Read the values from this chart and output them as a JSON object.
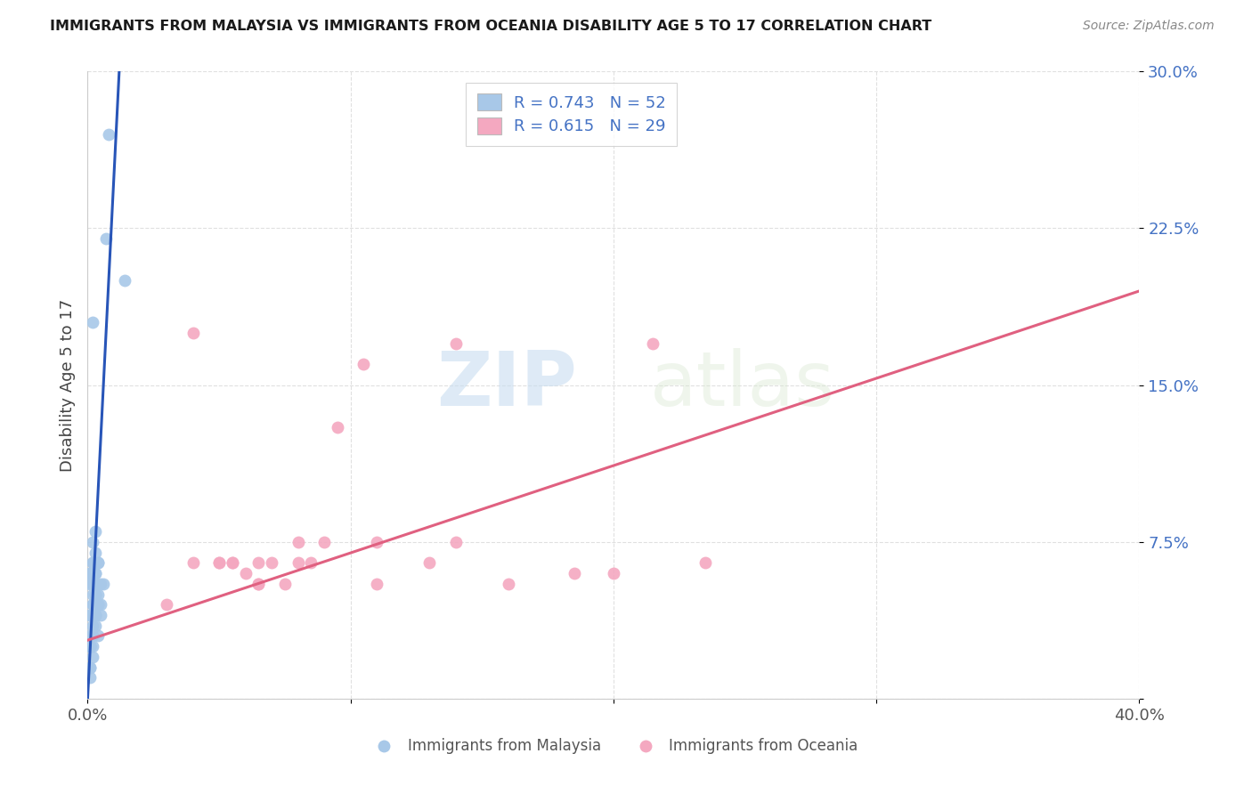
{
  "title": "IMMIGRANTS FROM MALAYSIA VS IMMIGRANTS FROM OCEANIA DISABILITY AGE 5 TO 17 CORRELATION CHART",
  "source": "Source: ZipAtlas.com",
  "ylabel": "Disability Age 5 to 17",
  "ytick_vals": [
    0.0,
    0.075,
    0.15,
    0.225,
    0.3
  ],
  "ytick_labels": [
    "",
    "7.5%",
    "15.0%",
    "22.5%",
    "30.0%"
  ],
  "xtick_vals": [
    0.0,
    0.1,
    0.2,
    0.3,
    0.4
  ],
  "xtick_labels": [
    "0.0%",
    "",
    "",
    "",
    "40.0%"
  ],
  "xlim": [
    0.0,
    0.4
  ],
  "ylim": [
    0.0,
    0.3
  ],
  "malaysia_r": 0.743,
  "malaysia_n": 52,
  "oceania_r": 0.615,
  "oceania_n": 29,
  "malaysia_color": "#a8c8e8",
  "oceania_color": "#f4a8c0",
  "malaysia_line_color": "#2855b8",
  "oceania_line_color": "#e06080",
  "malaysia_scatter_x": [
    0.005,
    0.003,
    0.002,
    0.001,
    0.008,
    0.004,
    0.006,
    0.003,
    0.005,
    0.002,
    0.001,
    0.001,
    0.004,
    0.003,
    0.007,
    0.002,
    0.002,
    0.003,
    0.001,
    0.002,
    0.003,
    0.004,
    0.001,
    0.005,
    0.003,
    0.002,
    0.001,
    0.004,
    0.002,
    0.003,
    0.002,
    0.001,
    0.001,
    0.002,
    0.001,
    0.003,
    0.004,
    0.001,
    0.002,
    0.002,
    0.004,
    0.003,
    0.003,
    0.002,
    0.001,
    0.003,
    0.014,
    0.002,
    0.001,
    0.001,
    0.003,
    0.002
  ],
  "malaysia_scatter_y": [
    0.055,
    0.04,
    0.045,
    0.03,
    0.27,
    0.065,
    0.055,
    0.04,
    0.045,
    0.065,
    0.06,
    0.055,
    0.065,
    0.07,
    0.22,
    0.075,
    0.065,
    0.06,
    0.04,
    0.055,
    0.05,
    0.045,
    0.04,
    0.04,
    0.05,
    0.035,
    0.025,
    0.03,
    0.04,
    0.05,
    0.055,
    0.015,
    0.015,
    0.02,
    0.025,
    0.04,
    0.05,
    0.025,
    0.03,
    0.025,
    0.045,
    0.035,
    0.055,
    0.05,
    0.06,
    0.08,
    0.2,
    0.045,
    0.025,
    0.01,
    0.06,
    0.18
  ],
  "oceania_scatter_x": [
    0.04,
    0.06,
    0.08,
    0.065,
    0.095,
    0.13,
    0.075,
    0.055,
    0.11,
    0.05,
    0.09,
    0.14,
    0.065,
    0.105,
    0.16,
    0.08,
    0.11,
    0.2,
    0.235,
    0.185,
    0.085,
    0.05,
    0.03,
    0.055,
    0.07,
    0.04,
    0.065,
    0.14,
    0.215
  ],
  "oceania_scatter_y": [
    0.175,
    0.06,
    0.065,
    0.055,
    0.13,
    0.065,
    0.055,
    0.065,
    0.055,
    0.065,
    0.075,
    0.075,
    0.065,
    0.16,
    0.055,
    0.075,
    0.075,
    0.06,
    0.065,
    0.06,
    0.065,
    0.065,
    0.045,
    0.065,
    0.065,
    0.065,
    0.055,
    0.17,
    0.17
  ],
  "malaysia_line_x": [
    0.0,
    0.012
  ],
  "malaysia_line_y": [
    0.0,
    0.3
  ],
  "oceania_line_x": [
    0.0,
    0.4
  ],
  "oceania_line_y": [
    0.028,
    0.195
  ],
  "watermark_zip": "ZIP",
  "watermark_atlas": "atlas",
  "background_color": "#ffffff",
  "grid_color": "#e0e0e0",
  "title_color": "#1a1a1a",
  "source_color": "#888888",
  "ytick_color": "#4472c4",
  "xtick_color": "#555555",
  "legend_text_color": "#4472c4",
  "legend_r1": "R = 0.743   N = 52",
  "legend_r2": "R = 0.615   N = 29",
  "bottom_legend_malaysia": "Immigrants from Malaysia",
  "bottom_legend_oceania": "Immigrants from Oceania"
}
